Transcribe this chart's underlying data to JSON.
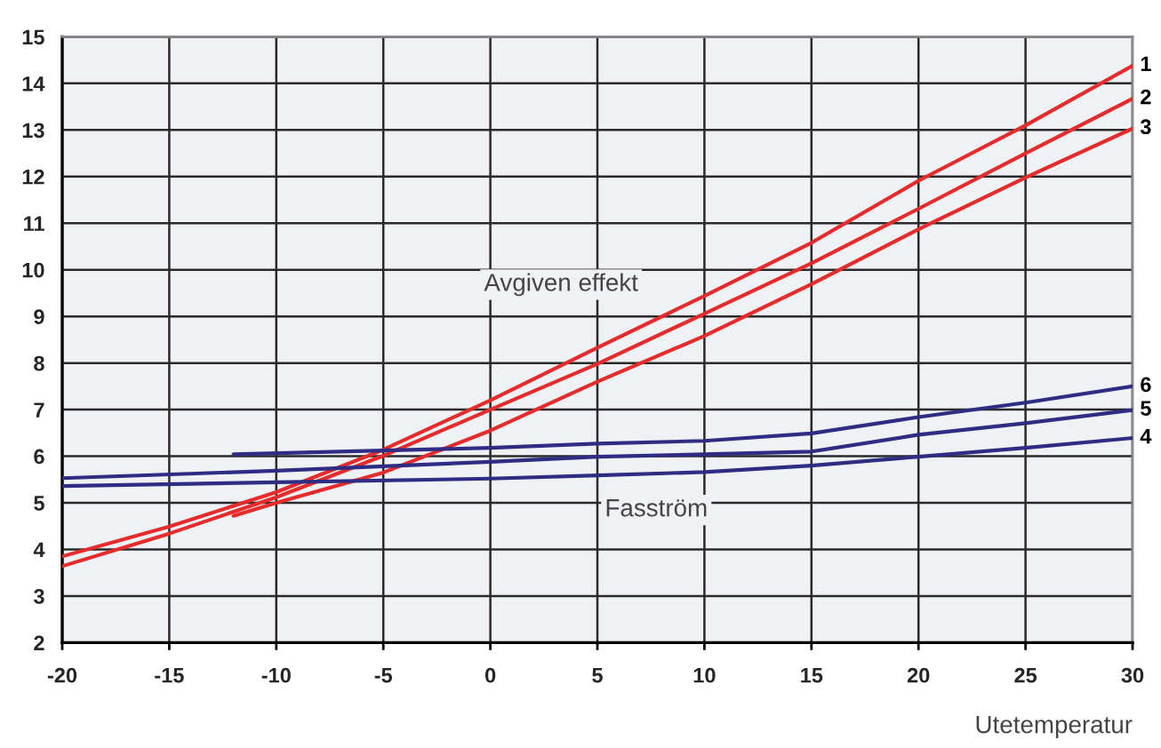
{
  "chart_data": {
    "type": "line",
    "xlabel": "Utetemperatur",
    "xlim": [
      -20,
      30
    ],
    "xticks": [
      -20,
      -15,
      -10,
      -5,
      0,
      5,
      10,
      15,
      20,
      25,
      30
    ],
    "ylim": [
      2,
      15
    ],
    "yticks": [
      2,
      3,
      4,
      5,
      6,
      7,
      8,
      9,
      10,
      11,
      12,
      13,
      14,
      15
    ],
    "grid": true,
    "line_style": "solid",
    "annotations": [
      "Avgiven effekt",
      "Fasström"
    ],
    "series": [
      {
        "name": "1",
        "color": "#e52b2b",
        "x": [
          -20,
          -15,
          -10,
          -5,
          0,
          5,
          10,
          15,
          20,
          25,
          30
        ],
        "values": [
          3.85,
          4.49,
          5.23,
          6.14,
          7.2,
          8.33,
          9.44,
          10.58,
          11.91,
          13.1,
          14.38
        ]
      },
      {
        "name": "2",
        "color": "#e52b2b",
        "x": [
          -20,
          -15,
          -10,
          -5,
          0,
          5,
          10,
          15,
          20,
          25,
          30
        ],
        "values": [
          3.64,
          4.34,
          5.12,
          6.01,
          7.0,
          7.98,
          9.06,
          10.14,
          11.31,
          12.5,
          13.67
        ]
      },
      {
        "name": "3",
        "color": "#e52b2b",
        "x": [
          -12,
          -10,
          -5,
          0,
          5,
          10,
          15,
          20,
          25,
          30
        ],
        "values": [
          4.72,
          5.0,
          5.65,
          6.55,
          7.6,
          8.58,
          9.69,
          10.87,
          11.98,
          13.03
        ]
      },
      {
        "name": "4",
        "color": "#2e2d83",
        "x": [
          -20,
          -10,
          0,
          5,
          10,
          15,
          20,
          25,
          30
        ],
        "values": [
          5.36,
          5.44,
          5.52,
          5.59,
          5.66,
          5.8,
          5.99,
          6.18,
          6.39
        ]
      },
      {
        "name": "5",
        "color": "#2e2d83",
        "x": [
          -20,
          -10,
          0,
          5,
          10,
          15,
          20,
          25,
          30
        ],
        "values": [
          5.53,
          5.69,
          5.88,
          5.99,
          6.04,
          6.1,
          6.46,
          6.71,
          6.99
        ]
      },
      {
        "name": "6",
        "color": "#2e2d83",
        "x": [
          -12,
          0,
          5,
          10,
          15,
          20,
          25,
          30
        ],
        "values": [
          6.04,
          6.18,
          6.27,
          6.33,
          6.49,
          6.84,
          7.15,
          7.5
        ]
      }
    ]
  }
}
